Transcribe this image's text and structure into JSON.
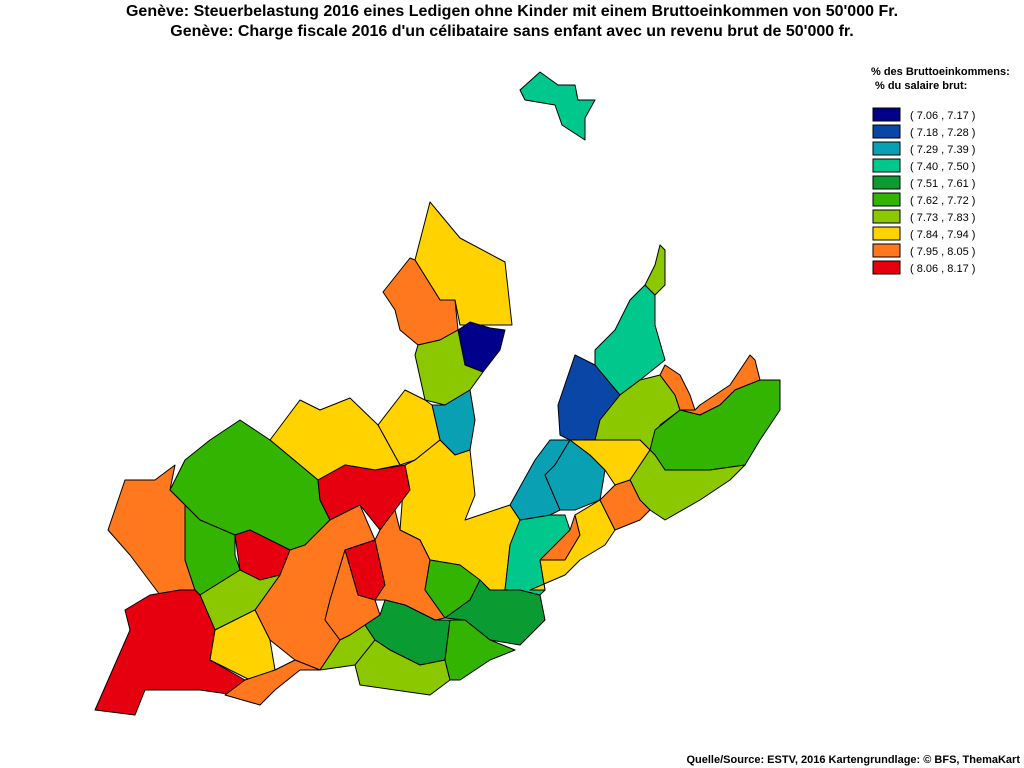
{
  "title": [
    "Genève: Steuerbelastung 2016 eines Ledigen ohne Kinder mit einem Bruttoeinkommen von 50'000 Fr.",
    "Genève: Charge fiscale 2016 d'un célibataire sans enfant avec un revenu brut de 50'000 fr."
  ],
  "legend": {
    "title": [
      "% des Bruttoeinkommens:",
      "% du salaire brut:"
    ],
    "items": [
      {
        "label": "( 7.06 , 7.17 )",
        "color": "#00008b"
      },
      {
        "label": "( 7.18 , 7.28 )",
        "color": "#0a46a5"
      },
      {
        "label": "( 7.29 , 7.39 )",
        "color": "#0aa0b4"
      },
      {
        "label": "( 7.40 , 7.50 )",
        "color": "#00c88c"
      },
      {
        "label": "( 7.51 , 7.61 )",
        "color": "#0a9b32"
      },
      {
        "label": "( 7.62 , 7.72 )",
        "color": "#32b400"
      },
      {
        "label": "( 7.73 , 7.83 )",
        "color": "#8cc800"
      },
      {
        "label": "( 7.84 , 7.94 )",
        "color": "#ffd200"
      },
      {
        "label": "( 7.95 , 8.05 )",
        "color": "#ff781e"
      },
      {
        "label": "( 8.06 , 8.17 )",
        "color": "#e6000f"
      }
    ]
  },
  "source": "Quelle/Source: ESTV, 2016 Kartengrundlage: © BFS, ThemaKart"
}
